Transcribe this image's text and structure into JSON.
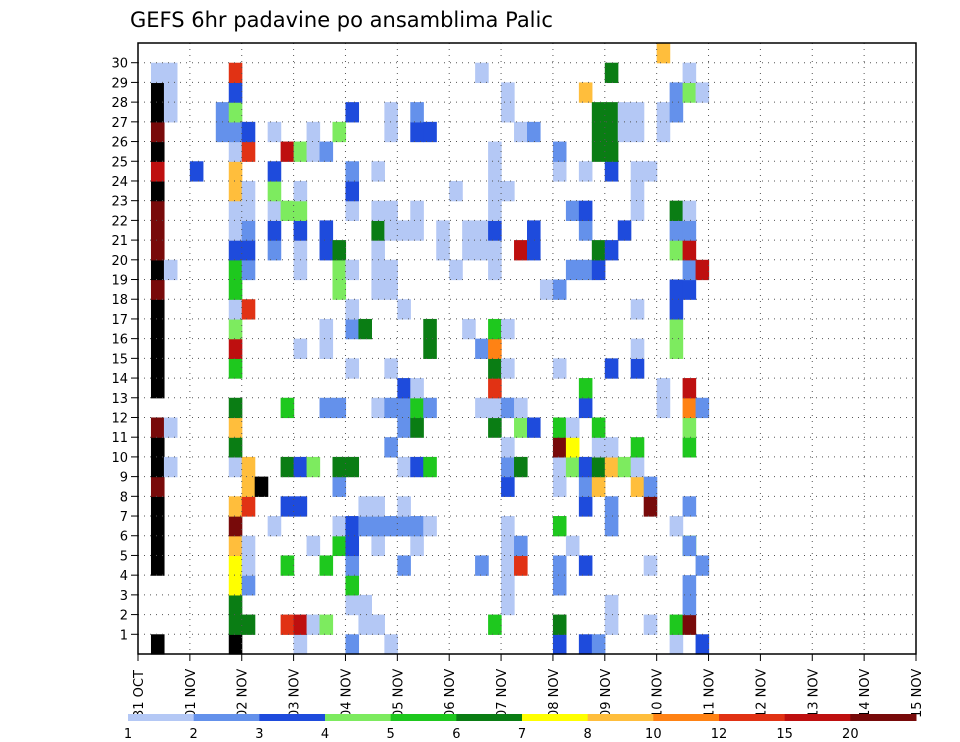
{
  "chart_data": {
    "type": "heatmap",
    "title": "GEFS 6hr padavine po ansamblima Palic",
    "xlabel": "",
    "ylabel": "",
    "x_start": "31 OCT",
    "x_step_hours": 6,
    "x_labels": [
      "31 OCT",
      "01 NOV",
      "02 NOV",
      "03 NOV",
      "04 NOV",
      "05 NOV",
      "06 NOV",
      "07 NOV",
      "08 NOV",
      "09 NOV",
      "10 NOV",
      "11 NOV",
      "12 NOV",
      "13 NOV",
      "14 NOV",
      "15 NOV"
    ],
    "y_labels": [
      "1",
      "2",
      "3",
      "4",
      "5",
      "6",
      "7",
      "8",
      "9",
      "10",
      "11",
      "12",
      "13",
      "14",
      "15",
      "16",
      "17",
      "18",
      "19",
      "20",
      "21",
      "22",
      "23",
      "24",
      "25",
      "26",
      "27",
      "28",
      "29",
      "30"
    ],
    "grid": true,
    "legend": "bottom",
    "colorbar": {
      "labels": [
        "1",
        "2",
        "3",
        "4",
        "5",
        "6",
        "7",
        "8",
        "10",
        "12",
        "15",
        "20"
      ],
      "colors": [
        "#b4c8f5",
        "#6491eb",
        "#1e4bdc",
        "#7deb5f",
        "#1ec81e",
        "#0a7d14",
        "#ffff00",
        "#ffbe3c",
        "#ff8214",
        "#e13214",
        "#be0f0f",
        "#780a0a"
      ]
    },
    "levels_note": "",
    "cells": [
      [
        1,
        0,
        12
      ],
      [
        1,
        4,
        12
      ],
      [
        1,
        5,
        12
      ],
      [
        1,
        6,
        12
      ],
      [
        1,
        7,
        13
      ],
      [
        1,
        8,
        11
      ],
      [
        1,
        9,
        12
      ],
      [
        1,
        10,
        12
      ],
      [
        1,
        11,
        11
      ],
      [
        1,
        13,
        13
      ],
      [
        1,
        14,
        13
      ],
      [
        1,
        15,
        13
      ],
      [
        1,
        16,
        13
      ],
      [
        1,
        17,
        13
      ],
      [
        1,
        18,
        11
      ],
      [
        1,
        19,
        12
      ],
      [
        1,
        20,
        11
      ],
      [
        1,
        21,
        11
      ],
      [
        1,
        22,
        11
      ],
      [
        1,
        23,
        13
      ],
      [
        1,
        24,
        10
      ],
      [
        1,
        25,
        13
      ],
      [
        1,
        26,
        11
      ],
      [
        1,
        27,
        13
      ],
      [
        1,
        28,
        13
      ],
      [
        1,
        29,
        0
      ],
      [
        2,
        9,
        0
      ],
      [
        2,
        11,
        0
      ],
      [
        2,
        19,
        0
      ],
      [
        2,
        27,
        0
      ],
      [
        2,
        28,
        0
      ],
      [
        2,
        29,
        0
      ],
      [
        4,
        24,
        2
      ],
      [
        6,
        26,
        1
      ],
      [
        6,
        27,
        1
      ],
      [
        7,
        0,
        13
      ],
      [
        7,
        1,
        5
      ],
      [
        7,
        2,
        5
      ],
      [
        7,
        3,
        6
      ],
      [
        7,
        4,
        6
      ],
      [
        7,
        5,
        7
      ],
      [
        7,
        6,
        11
      ],
      [
        7,
        7,
        7
      ],
      [
        7,
        9,
        0
      ],
      [
        7,
        10,
        5
      ],
      [
        7,
        11,
        7
      ],
      [
        7,
        12,
        5
      ],
      [
        7,
        14,
        4
      ],
      [
        7,
        15,
        10
      ],
      [
        7,
        16,
        3
      ],
      [
        7,
        17,
        0
      ],
      [
        7,
        18,
        4
      ],
      [
        7,
        19,
        4
      ],
      [
        7,
        20,
        2
      ],
      [
        7,
        21,
        0
      ],
      [
        7,
        22,
        0
      ],
      [
        7,
        23,
        7
      ],
      [
        7,
        24,
        7
      ],
      [
        7,
        25,
        0
      ],
      [
        7,
        26,
        1
      ],
      [
        7,
        27,
        3
      ],
      [
        7,
        28,
        2
      ],
      [
        7,
        29,
        9
      ],
      [
        8,
        1,
        5
      ],
      [
        8,
        3,
        1
      ],
      [
        8,
        4,
        0
      ],
      [
        8,
        5,
        0
      ],
      [
        8,
        7,
        9
      ],
      [
        8,
        8,
        7
      ],
      [
        8,
        9,
        7
      ],
      [
        8,
        17,
        9
      ],
      [
        8,
        19,
        1
      ],
      [
        8,
        20,
        2
      ],
      [
        8,
        21,
        1
      ],
      [
        8,
        22,
        0
      ],
      [
        8,
        23,
        0
      ],
      [
        8,
        25,
        9
      ],
      [
        8,
        26,
        2
      ],
      [
        9,
        8,
        13
      ],
      [
        10,
        6,
        0
      ],
      [
        10,
        20,
        1
      ],
      [
        10,
        21,
        2
      ],
      [
        10,
        22,
        0
      ],
      [
        10,
        23,
        3
      ],
      [
        10,
        24,
        2
      ],
      [
        10,
        26,
        0
      ],
      [
        11,
        4,
        4
      ],
      [
        11,
        1,
        9
      ],
      [
        11,
        7,
        2
      ],
      [
        11,
        9,
        5
      ],
      [
        11,
        12,
        4
      ],
      [
        11,
        22,
        3
      ],
      [
        11,
        25,
        10
      ],
      [
        12,
        0,
        0
      ],
      [
        12,
        1,
        10
      ],
      [
        12,
        7,
        2
      ],
      [
        12,
        9,
        2
      ],
      [
        12,
        15,
        0
      ],
      [
        12,
        19,
        0
      ],
      [
        12,
        20,
        0
      ],
      [
        12,
        21,
        2
      ],
      [
        12,
        22,
        3
      ],
      [
        12,
        23,
        0
      ],
      [
        12,
        25,
        3
      ],
      [
        13,
        1,
        0
      ],
      [
        13,
        5,
        0
      ],
      [
        13,
        9,
        3
      ],
      [
        13,
        25,
        0
      ],
      [
        13,
        26,
        0
      ],
      [
        14,
        1,
        3
      ],
      [
        14,
        4,
        4
      ],
      [
        14,
        12,
        1
      ],
      [
        14,
        15,
        0
      ],
      [
        14,
        16,
        0
      ],
      [
        14,
        20,
        2
      ],
      [
        14,
        21,
        2
      ],
      [
        14,
        25,
        1
      ],
      [
        15,
        5,
        4
      ],
      [
        15,
        6,
        0
      ],
      [
        15,
        8,
        1
      ],
      [
        15,
        9,
        5
      ],
      [
        15,
        12,
        1
      ],
      [
        15,
        18,
        3
      ],
      [
        15,
        19,
        3
      ],
      [
        15,
        20,
        5
      ],
      [
        15,
        26,
        3
      ],
      [
        16,
        0,
        1
      ],
      [
        16,
        2,
        0
      ],
      [
        16,
        3,
        4
      ],
      [
        16,
        4,
        1
      ],
      [
        16,
        5,
        2
      ],
      [
        16,
        6,
        2
      ],
      [
        16,
        9,
        5
      ],
      [
        16,
        14,
        0
      ],
      [
        16,
        16,
        1
      ],
      [
        16,
        17,
        0
      ],
      [
        16,
        19,
        0
      ],
      [
        16,
        22,
        0
      ],
      [
        16,
        23,
        2
      ],
      [
        16,
        24,
        1
      ],
      [
        16,
        27,
        2
      ],
      [
        17,
        1,
        0
      ],
      [
        17,
        2,
        0
      ],
      [
        17,
        6,
        1
      ],
      [
        17,
        7,
        0
      ],
      [
        17,
        16,
        5
      ],
      [
        18,
        1,
        0
      ],
      [
        18,
        5,
        0
      ],
      [
        18,
        6,
        1
      ],
      [
        18,
        7,
        0
      ],
      [
        18,
        12,
        0
      ],
      [
        18,
        18,
        0
      ],
      [
        18,
        19,
        0
      ],
      [
        18,
        20,
        0
      ],
      [
        18,
        21,
        5
      ],
      [
        18,
        22,
        0
      ],
      [
        18,
        24,
        0
      ],
      [
        19,
        0,
        0
      ],
      [
        19,
        6,
        1
      ],
      [
        19,
        10,
        1
      ],
      [
        19,
        12,
        1
      ],
      [
        19,
        14,
        0
      ],
      [
        19,
        18,
        0
      ],
      [
        19,
        19,
        0
      ],
      [
        19,
        21,
        0
      ],
      [
        19,
        22,
        0
      ],
      [
        19,
        26,
        0
      ],
      [
        19,
        27,
        0
      ],
      [
        20,
        4,
        1
      ],
      [
        20,
        6,
        1
      ],
      [
        20,
        7,
        0
      ],
      [
        20,
        9,
        0
      ],
      [
        20,
        11,
        1
      ],
      [
        20,
        12,
        1
      ],
      [
        20,
        13,
        2
      ],
      [
        20,
        17,
        0
      ],
      [
        20,
        21,
        0
      ],
      [
        21,
        5,
        0
      ],
      [
        21,
        6,
        1
      ],
      [
        21,
        9,
        2
      ],
      [
        21,
        11,
        5
      ],
      [
        21,
        12,
        4
      ],
      [
        21,
        13,
        0
      ],
      [
        21,
        21,
        0
      ],
      [
        21,
        22,
        0
      ],
      [
        21,
        26,
        2
      ],
      [
        21,
        27,
        1
      ],
      [
        22,
        6,
        0
      ],
      [
        22,
        9,
        4
      ],
      [
        22,
        12,
        1
      ],
      [
        22,
        15,
        5
      ],
      [
        22,
        16,
        5
      ],
      [
        22,
        26,
        2
      ],
      [
        23,
        20,
        0
      ],
      [
        23,
        21,
        0
      ],
      [
        24,
        19,
        0
      ],
      [
        24,
        23,
        0
      ],
      [
        25,
        16,
        0
      ],
      [
        25,
        20,
        0
      ],
      [
        25,
        21,
        0
      ],
      [
        26,
        4,
        0
      ],
      [
        26,
        4,
        1
      ],
      [
        26,
        12,
        0
      ],
      [
        26,
        15,
        1
      ],
      [
        26,
        20,
        0
      ],
      [
        26,
        21,
        0
      ],
      [
        26,
        29,
        0
      ],
      [
        27,
        1,
        4
      ],
      [
        27,
        11,
        5
      ],
      [
        27,
        12,
        0
      ],
      [
        27,
        13,
        9
      ],
      [
        27,
        14,
        5
      ],
      [
        27,
        15,
        8
      ],
      [
        27,
        16,
        4
      ],
      [
        27,
        19,
        0
      ],
      [
        27,
        20,
        0
      ],
      [
        27,
        21,
        2
      ],
      [
        27,
        22,
        0
      ],
      [
        27,
        23,
        0
      ],
      [
        27,
        24,
        0
      ],
      [
        27,
        25,
        0
      ],
      [
        28,
        2,
        0
      ],
      [
        28,
        3,
        0
      ],
      [
        28,
        4,
        0
      ],
      [
        28,
        5,
        0
      ],
      [
        28,
        6,
        0
      ],
      [
        28,
        8,
        2
      ],
      [
        28,
        9,
        1
      ],
      [
        28,
        10,
        0
      ],
      [
        28,
        12,
        0
      ],
      [
        28,
        12,
        1
      ],
      [
        28,
        14,
        0
      ],
      [
        28,
        16,
        0
      ],
      [
        28,
        23,
        0
      ],
      [
        28,
        27,
        0
      ],
      [
        28,
        28,
        0
      ],
      [
        29,
        4,
        9
      ],
      [
        29,
        5,
        1
      ],
      [
        29,
        9,
        5
      ],
      [
        29,
        11,
        3
      ],
      [
        29,
        12,
        0
      ],
      [
        29,
        20,
        10
      ],
      [
        29,
        26,
        0
      ],
      [
        30,
        11,
        2
      ],
      [
        30,
        20,
        2
      ],
      [
        30,
        21,
        2
      ],
      [
        30,
        26,
        1
      ],
      [
        31,
        18,
        0
      ],
      [
        32,
        0,
        2
      ],
      [
        32,
        1,
        5
      ],
      [
        32,
        3,
        1
      ],
      [
        32,
        4,
        1
      ],
      [
        32,
        6,
        4
      ],
      [
        32,
        8,
        0
      ],
      [
        32,
        9,
        0
      ],
      [
        32,
        10,
        11
      ],
      [
        32,
        11,
        4
      ],
      [
        32,
        14,
        0
      ],
      [
        32,
        18,
        1
      ],
      [
        32,
        24,
        0
      ],
      [
        32,
        25,
        1
      ],
      [
        33,
        5,
        0
      ],
      [
        33,
        9,
        3
      ],
      [
        33,
        10,
        6
      ],
      [
        33,
        11,
        0
      ],
      [
        33,
        19,
        1
      ],
      [
        33,
        22,
        1
      ],
      [
        34,
        0,
        2
      ],
      [
        34,
        4,
        2
      ],
      [
        34,
        7,
        2
      ],
      [
        34,
        8,
        1
      ],
      [
        34,
        9,
        2
      ],
      [
        34,
        12,
        2
      ],
      [
        34,
        13,
        4
      ],
      [
        34,
        19,
        1
      ],
      [
        34,
        21,
        1
      ],
      [
        34,
        22,
        2
      ],
      [
        34,
        24,
        0
      ],
      [
        34,
        28,
        7
      ],
      [
        35,
        0,
        1
      ],
      [
        35,
        8,
        7
      ],
      [
        35,
        9,
        5
      ],
      [
        35,
        10,
        0
      ],
      [
        35,
        11,
        4
      ],
      [
        35,
        19,
        2
      ],
      [
        35,
        20,
        5
      ],
      [
        35,
        25,
        5
      ],
      [
        35,
        26,
        5
      ],
      [
        35,
        27,
        5
      ],
      [
        36,
        1,
        0
      ],
      [
        36,
        2,
        0
      ],
      [
        36,
        6,
        1
      ],
      [
        36,
        7,
        1
      ],
      [
        36,
        9,
        7
      ],
      [
        36,
        10,
        0
      ],
      [
        36,
        14,
        2
      ],
      [
        36,
        20,
        2
      ],
      [
        36,
        24,
        2
      ],
      [
        36,
        25,
        5
      ],
      [
        36,
        26,
        5
      ],
      [
        36,
        27,
        5
      ],
      [
        36,
        29,
        5
      ],
      [
        37,
        9,
        3
      ],
      [
        37,
        21,
        2
      ],
      [
        37,
        26,
        0
      ],
      [
        37,
        27,
        0
      ],
      [
        38,
        8,
        7
      ],
      [
        38,
        9,
        0
      ],
      [
        38,
        10,
        4
      ],
      [
        38,
        14,
        2
      ],
      [
        38,
        15,
        0
      ],
      [
        38,
        17,
        0
      ],
      [
        38,
        22,
        0
      ],
      [
        38,
        23,
        0
      ],
      [
        38,
        24,
        0
      ],
      [
        38,
        26,
        0
      ],
      [
        38,
        27,
        0
      ],
      [
        39,
        1,
        0
      ],
      [
        39,
        4,
        0
      ],
      [
        39,
        7,
        11
      ],
      [
        39,
        8,
        1
      ],
      [
        39,
        24,
        0
      ],
      [
        40,
        12,
        0
      ],
      [
        40,
        13,
        0
      ],
      [
        40,
        26,
        0
      ],
      [
        40,
        27,
        0
      ],
      [
        40,
        30,
        7
      ],
      [
        41,
        0,
        0
      ],
      [
        41,
        1,
        4
      ],
      [
        41,
        6,
        0
      ],
      [
        41,
        15,
        3
      ],
      [
        41,
        16,
        3
      ],
      [
        41,
        17,
        2
      ],
      [
        41,
        18,
        2
      ],
      [
        41,
        20,
        3
      ],
      [
        41,
        21,
        1
      ],
      [
        41,
        22,
        5
      ],
      [
        41,
        27,
        1
      ],
      [
        41,
        28,
        1
      ],
      [
        42,
        1,
        11
      ],
      [
        42,
        2,
        1
      ],
      [
        42,
        3,
        1
      ],
      [
        42,
        5,
        4
      ],
      [
        42,
        5,
        1
      ],
      [
        42,
        7,
        1
      ],
      [
        42,
        10,
        4
      ],
      [
        42,
        11,
        3
      ],
      [
        42,
        12,
        8
      ],
      [
        42,
        13,
        10
      ],
      [
        42,
        18,
        2
      ],
      [
        42,
        19,
        1
      ],
      [
        42,
        20,
        10
      ],
      [
        42,
        21,
        1
      ],
      [
        42,
        22,
        0
      ],
      [
        42,
        28,
        3
      ],
      [
        42,
        29,
        0
      ],
      [
        43,
        0,
        2
      ],
      [
        43,
        4,
        1
      ],
      [
        43,
        12,
        1
      ],
      [
        43,
        19,
        10
      ],
      [
        43,
        28,
        0
      ]
    ]
  }
}
